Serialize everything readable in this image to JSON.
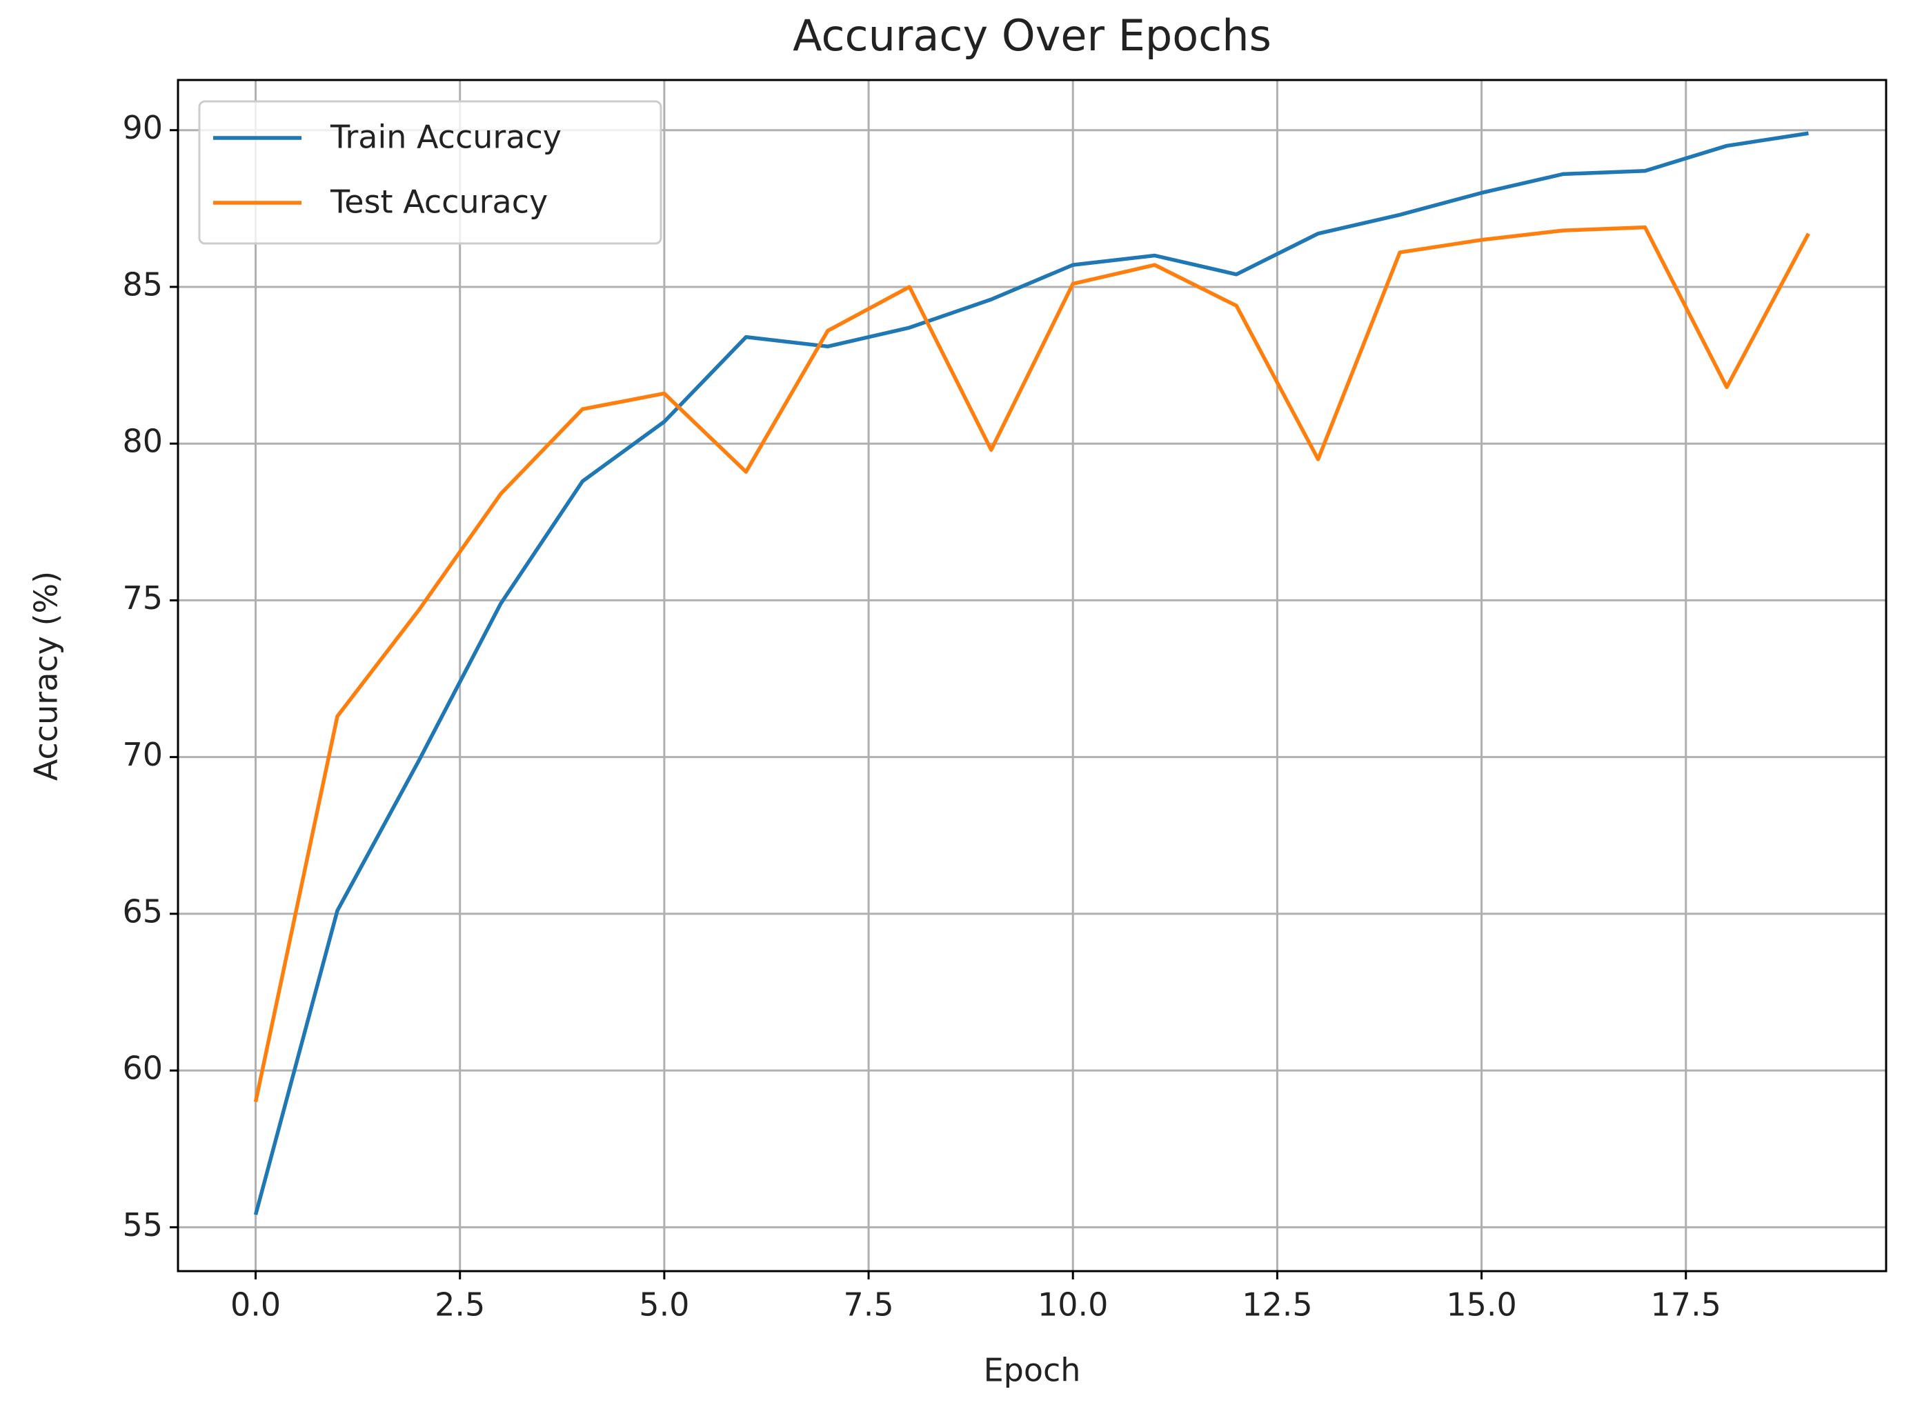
{
  "chart_data": {
    "type": "line",
    "title": "Accuracy Over Epochs",
    "xlabel": "Epoch",
    "ylabel": "Accuracy (%)",
    "x": [
      0,
      1,
      2,
      3,
      4,
      5,
      6,
      7,
      8,
      9,
      10,
      11,
      12,
      13,
      14,
      15,
      16,
      17,
      18,
      19
    ],
    "series": [
      {
        "name": "Train Accuracy",
        "color": "#1f77b4",
        "values": [
          55.4,
          65.1,
          69.9,
          74.9,
          78.8,
          80.7,
          83.4,
          83.1,
          83.7,
          84.6,
          85.7,
          86.0,
          85.4,
          86.7,
          87.3,
          88.0,
          88.6,
          88.7,
          89.5,
          89.9
        ]
      },
      {
        "name": "Test Accuracy",
        "color": "#ff7f0e",
        "values": [
          59.0,
          71.3,
          74.7,
          78.4,
          81.1,
          81.6,
          79.1,
          83.6,
          85.0,
          79.8,
          85.1,
          85.7,
          84.4,
          79.5,
          86.1,
          86.5,
          86.8,
          86.9,
          81.8,
          86.7
        ]
      }
    ],
    "xlim": [
      -0.95,
      19.95
    ],
    "xticks": [
      {
        "value": 0,
        "label": "0.0"
      },
      2.5,
      {
        "value": 5,
        "label": "5.0"
      },
      7.5,
      {
        "value": 10,
        "label": "10.0"
      },
      12.5,
      {
        "value": 15,
        "label": "15.0"
      },
      17.5
    ],
    "ylim": [
      53.6,
      91.6
    ],
    "yticks": [
      55,
      60,
      65,
      70,
      75,
      80,
      85,
      90
    ],
    "grid": true,
    "legend": "upper left"
  }
}
